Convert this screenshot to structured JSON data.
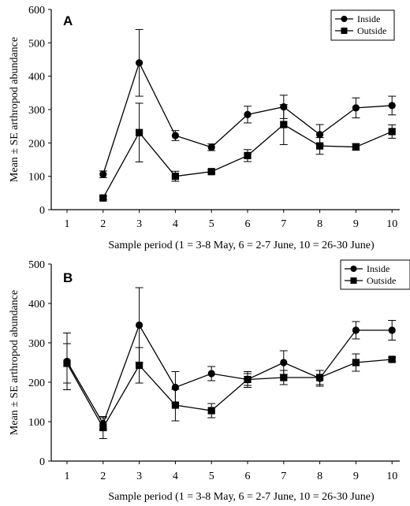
{
  "chart_data": [
    {
      "type": "line",
      "panel_label": "A",
      "ylabel": "Mean ± SE arthropod abundance",
      "xlabel": "Sample period (1 = 3-8 May, 6 = 2-7 June, 10 = 26-30 June)",
      "ylim": [
        0,
        600
      ],
      "yticks": [
        "0",
        "100",
        "200",
        "300",
        "400",
        "500",
        "600"
      ],
      "categories": [
        "1",
        "2",
        "3",
        "4",
        "5",
        "6",
        "7",
        "8",
        "9",
        "10"
      ],
      "legend_position": "top-right",
      "series": [
        {
          "name": "Inside",
          "marker": "circle",
          "x": [
            2,
            3,
            4,
            5,
            6,
            7,
            8,
            9,
            10
          ],
          "values": [
            106,
            440,
            222,
            187,
            285,
            308,
            225,
            305,
            312
          ],
          "se": [
            10,
            100,
            15,
            10,
            25,
            35,
            30,
            30,
            28
          ]
        },
        {
          "name": "Outside",
          "marker": "square",
          "x": [
            2,
            3,
            4,
            5,
            6,
            7,
            8,
            9,
            10
          ],
          "values": [
            35,
            231,
            100,
            114,
            162,
            255,
            191,
            188,
            234
          ],
          "se": [
            5,
            88,
            15,
            5,
            18,
            60,
            25,
            10,
            20
          ]
        }
      ]
    },
    {
      "type": "line",
      "panel_label": "B",
      "ylabel": "Mean ± SE arthropod abundance",
      "xlabel": "Sample period (1 = 3-8 May, 6 = 2-7 June, 10 = 26-30 June)",
      "ylim": [
        0,
        500
      ],
      "yticks": [
        "0",
        "100",
        "200",
        "300",
        "400",
        "500"
      ],
      "categories": [
        "1",
        "2",
        "3",
        "4",
        "5",
        "6",
        "7",
        "8",
        "9",
        "10"
      ],
      "legend_position": "top-right",
      "series": [
        {
          "name": "Inside",
          "marker": "circle",
          "x": [
            1,
            2,
            3,
            4,
            5,
            6,
            7,
            8,
            9,
            10
          ],
          "values": [
            253,
            95,
            345,
            187,
            222,
            207,
            250,
            210,
            332,
            332
          ],
          "se": [
            72,
            15,
            95,
            40,
            18,
            20,
            30,
            20,
            22,
            25
          ]
        },
        {
          "name": "Outside",
          "marker": "square",
          "x": [
            1,
            2,
            3,
            4,
            5,
            6,
            7,
            8,
            9,
            10
          ],
          "values": [
            248,
            85,
            243,
            142,
            128,
            207,
            212,
            212,
            250,
            258
          ],
          "se": [
            50,
            28,
            45,
            40,
            18,
            15,
            18,
            18,
            22,
            5
          ]
        }
      ]
    }
  ]
}
